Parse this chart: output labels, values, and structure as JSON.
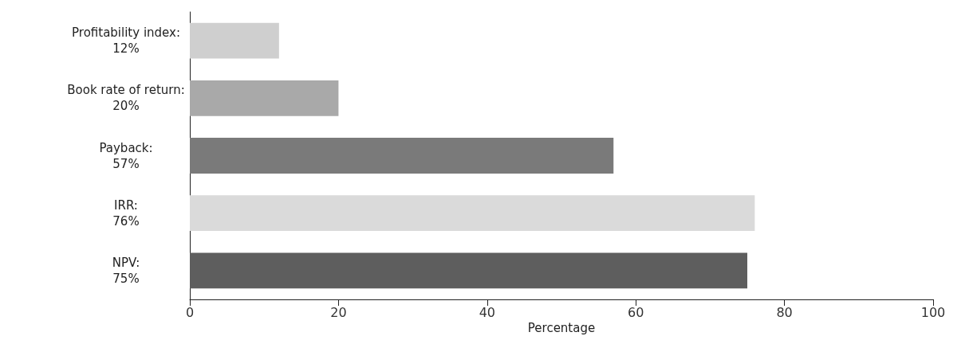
{
  "chart_data": {
    "type": "bar",
    "orientation": "horizontal",
    "xlabel": "Percentage",
    "categories": [
      "Profitability index:\n12%",
      "Book rate of return:\n20%",
      "Payback:\n57%",
      "IRR:\n76%",
      "NPV:\n75%"
    ],
    "values": [
      12,
      20,
      57,
      76,
      75
    ],
    "colors": [
      "#cfcfcf",
      "#a9a9a9",
      "#7a7a7a",
      "#dadada",
      "#5e5e5e"
    ],
    "xlim": [
      0,
      100
    ],
    "xticks": [
      0,
      20,
      40,
      60,
      80,
      100
    ],
    "grid": false
  }
}
